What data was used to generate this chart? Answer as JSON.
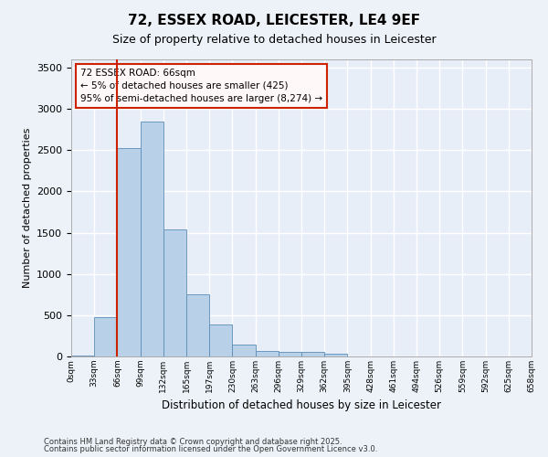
{
  "title": "72, ESSEX ROAD, LEICESTER, LE4 9EF",
  "subtitle": "Size of property relative to detached houses in Leicester",
  "xlabel": "Distribution of detached houses by size in Leicester",
  "ylabel": "Number of detached properties",
  "footnote1": "Contains HM Land Registry data © Crown copyright and database right 2025.",
  "footnote2": "Contains public sector information licensed under the Open Government Licence v3.0.",
  "annotation_title": "72 ESSEX ROAD: 66sqm",
  "annotation_line2": "← 5% of detached houses are smaller (425)",
  "annotation_line3": "95% of semi-detached houses are larger (8,274) →",
  "bar_values": [
    15,
    480,
    2530,
    2850,
    1540,
    750,
    390,
    140,
    70,
    55,
    60,
    30,
    5,
    0,
    0,
    0,
    0,
    0,
    0,
    0
  ],
  "bin_labels": [
    "0sqm",
    "33sqm",
    "66sqm",
    "99sqm",
    "132sqm",
    "165sqm",
    "197sqm",
    "230sqm",
    "263sqm",
    "296sqm",
    "329sqm",
    "362sqm",
    "395sqm",
    "428sqm",
    "461sqm",
    "494sqm",
    "526sqm",
    "559sqm",
    "592sqm",
    "625sqm",
    "658sqm"
  ],
  "bar_color": "#b8d0e8",
  "bar_edge_color": "#5b8db8",
  "red_line_x": 2,
  "ylim": [
    0,
    3600
  ],
  "yticks": [
    0,
    500,
    1000,
    1500,
    2000,
    2500,
    3000,
    3500
  ],
  "bg_color": "#e8eef8",
  "grid_color": "#ffffff",
  "fig_bg_color": "#edf2f8"
}
